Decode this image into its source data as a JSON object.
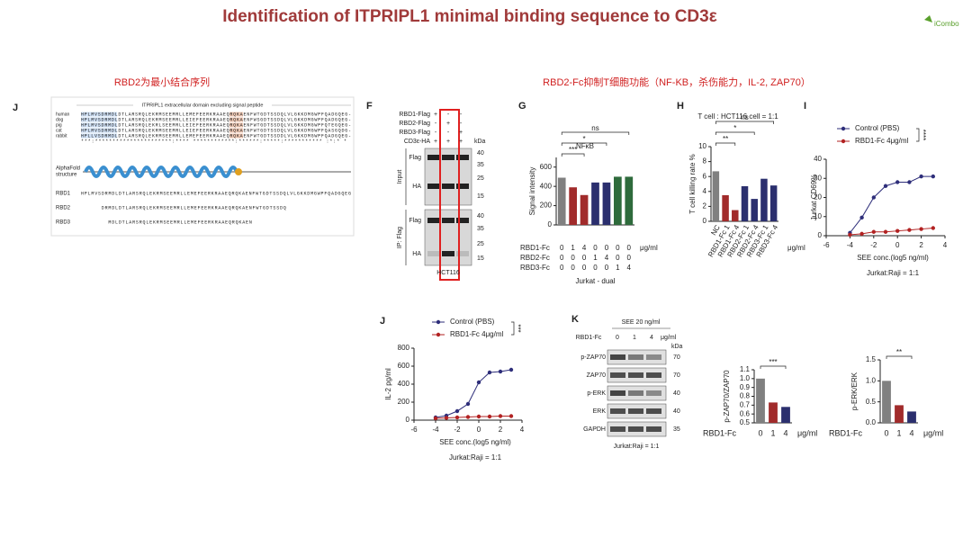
{
  "header": {
    "title": "Identification of ITPRIPL1 minimal binding sequence to CD3ε",
    "logo": "iCombo"
  },
  "section_titles": [
    "RBD2为最小结合序列",
    "RBD2-Fc抑制T细胞功能（NF-KB，杀伤能力，IL-2, ZAP70）"
  ],
  "panel_letters": [
    "J",
    "F",
    "G",
    "H",
    "I",
    "J",
    "K"
  ],
  "alignment": {
    "header": "ITPRIPL1 extracellular domain excluding signal peptide",
    "species": [
      "human",
      "dog",
      "pig",
      "cat",
      "rabbit"
    ],
    "sequences": [
      "HPLMVSDRMDLDTLARSRQLEKRMSEEMRLLEMEFEERKRAAEQRQKAENFWTGDTSSDQLVLGKKDMGWPFQADGQEG-",
      "HPLMVSDRMDLDTLARSRQLEKRMSEEMRLLEIEFEERKRAAEQRQKAENFWSGDTSSDQLVLGKKDMGWPFQADGQEG-",
      "HPLMVSDRMDLDTLARSRQLEKRLSEEMRLLEIEFEERKRAAEQRQKAENFWTGDTSSDQLVLGKKDMGWPFQTEGQEG-",
      "HPLMVSDRMDLDTLARSRQLEKRMSEEMRLLEIEFEERKRAAEQRQKAENFWTGDTSSDQLVLGKKDMGWPFQASGQDG-",
      "HPLLVSDRMDLDTLARSRQLEKRMSEEMRLLEMEFEERKRAAEQRQKAENFWTGDTSSDDLVLGKKDMGWPFQADGQEG-"
    ],
    "consensus": "***:**********************:**** ************:******:*****:*********** :*:* *",
    "structure_label": [
      "AlphaFold",
      "structure"
    ],
    "constructs": [
      {
        "name": "RBD1",
        "sequence": "HPLMVSDRMDLDTLARSRQLEKRMSEEMRLLEMEFEERKRAAEQRQKAENFWTGDTSSDQLVLGKKDMGWPFQADGQEG"
      },
      {
        "name": "RBD2",
        "sequence": "DRMDLDTLARSRQLEKRMSEEMRLLEMEFEERKRAAEQRQKAENFWTGDTSSDQ"
      },
      {
        "name": "RBD3",
        "sequence": "MDLDTLARSRQLEKRMSEEMRLLEMEFEERKRAAEQRQKAEN"
      }
    ]
  },
  "blot_f": {
    "rows": [
      {
        "label": "RBD1-Flag",
        "signs": [
          "+",
          "-",
          "-"
        ]
      },
      {
        "label": "RBD2-Flag",
        "signs": [
          "-",
          "+",
          "-"
        ]
      },
      {
        "label": "RBD3-Flag",
        "signs": [
          "-",
          "-",
          "+"
        ]
      },
      {
        "label": "CD3ε-HA",
        "signs": [
          "+",
          "+",
          "+"
        ]
      }
    ],
    "kda": "kDa",
    "groups": [
      "Input",
      "IP: Flag"
    ],
    "bands": [
      "Flag",
      "HA",
      "Flag",
      "HA"
    ],
    "markers": [
      40,
      35,
      25,
      15,
      40,
      35,
      25,
      15
    ],
    "cell": "HCT116"
  },
  "blot_k": {
    "condition": "SEE 20 ng/ml",
    "treatment": "RBD1-Fc",
    "doses": [
      0,
      1,
      4
    ],
    "unit": "μg/ml",
    "kda": "kDa",
    "bands": [
      {
        "label": "p-ZAP70",
        "marker": 70
      },
      {
        "label": "ZAP70",
        "marker": 70
      },
      {
        "label": "p-ERK",
        "marker": 40
      },
      {
        "label": "ERK",
        "marker": 40
      },
      {
        "label": "GAPDH",
        "marker": 35
      }
    ],
    "caption": "Jurkat:Raji = 1:1"
  },
  "chart_data": [
    {
      "type": "bar",
      "title": "NFκB",
      "ylabel": "Signal intensity",
      "values": [
        490,
        390,
        310,
        440,
        440,
        500,
        500
      ],
      "colors": [
        "#808080",
        "#a12b2b",
        "#a12b2b",
        "#2b2f6e",
        "#2b2f6e",
        "#2e6b3c",
        "#2e6b3c"
      ],
      "ylim": [
        0,
        700
      ],
      "yticks": [
        0,
        200,
        400,
        600
      ],
      "category_rows": [
        {
          "label": "RBD1-Fc",
          "values": [
            0,
            1,
            4,
            0,
            0,
            0,
            0
          ]
        },
        {
          "label": "RBD2-Fc",
          "values": [
            0,
            0,
            0,
            1,
            4,
            0,
            0
          ]
        },
        {
          "label": "RBD3-Fc",
          "values": [
            0,
            0,
            0,
            0,
            0,
            1,
            4
          ]
        }
      ],
      "unit": "μg/ml",
      "xlabel": "Jurkat - dual",
      "significance": [
        "***",
        "*",
        "ns"
      ]
    },
    {
      "type": "bar",
      "title": "T cell : HCT116 cell = 1:1",
      "ylabel": "T cell killing rate %",
      "values": [
        6.7,
        3.5,
        1.5,
        4.7,
        3,
        5.7,
        4.8
      ],
      "colors": [
        "#808080",
        "#a12b2b",
        "#a12b2b",
        "#2b2f6e",
        "#2b2f6e",
        "#2b2f6e",
        "#2b2f6e"
      ],
      "categories": [
        "NC",
        "RBD1-Fc 1",
        "RBD1-Fc 4",
        "RBD2-Fc 1",
        "RBD2-Fc 4",
        "RBD3-Fc 1",
        "RBD3-Fc 4"
      ],
      "ylim": [
        0,
        10
      ],
      "yticks": [
        0,
        2,
        4,
        6,
        8,
        10
      ],
      "unit": "μg/ml",
      "significance": [
        "**",
        "*",
        "ns"
      ]
    },
    {
      "type": "line",
      "ylabel": "Jurkat CD69%",
      "xlabel": "SEE conc.(log5 ng/ml)",
      "caption": "Jurkat:Raji = 1:1",
      "x": [
        -4,
        -3,
        -2,
        -1,
        0,
        1,
        2,
        3
      ],
      "xlim": [
        -6,
        4
      ],
      "xticks": [
        -6,
        -4,
        -2,
        0,
        2,
        4
      ],
      "ylim": [
        0,
        40
      ],
      "yticks": [
        0,
        10,
        20,
        30,
        40
      ],
      "series": [
        {
          "name": "Control (PBS)",
          "color": "#2e2e7a",
          "values": [
            1.5,
            9.5,
            20,
            26,
            28,
            28,
            31,
            31
          ]
        },
        {
          "name": "RBD1-Fc 4μg/ml",
          "color": "#b22222",
          "values": [
            0.5,
            1,
            2,
            2,
            2.5,
            3,
            3.5,
            4
          ]
        }
      ],
      "significance": [
        "****"
      ]
    },
    {
      "type": "line",
      "ylabel": "IL-2 pg/ml",
      "xlabel": "SEE conc.(log5 ng/ml)",
      "caption": "Jurkat:Raji = 1:1",
      "x": [
        -4,
        -3,
        -2,
        -1,
        0,
        1,
        2,
        3
      ],
      "xlim": [
        -6,
        4
      ],
      "xticks": [
        -6,
        -4,
        -2,
        0,
        2,
        4
      ],
      "ylim": [
        0,
        800
      ],
      "yticks": [
        0,
        200,
        400,
        600,
        800
      ],
      "series": [
        {
          "name": "Control (PBS)",
          "color": "#2e2e7a",
          "values": [
            30,
            50,
            100,
            180,
            420,
            530,
            540,
            560
          ]
        },
        {
          "name": "RBD1-Fc 4μg/ml",
          "color": "#b22222",
          "values": [
            20,
            25,
            30,
            35,
            40,
            40,
            45,
            45
          ]
        }
      ],
      "significance": [
        "***"
      ]
    },
    {
      "type": "bar",
      "ylabel": "p-ZAP70/ZAP70",
      "xlabel": "RBD1-Fc",
      "categories": [
        "0",
        "1",
        "4"
      ],
      "values": [
        1.0,
        0.73,
        0.68
      ],
      "colors": [
        "#808080",
        "#a12b2b",
        "#2b2f6e"
      ],
      "ylim": [
        0.5,
        1.1
      ],
      "yticks": [
        0.5,
        0.6,
        0.7,
        0.8,
        0.9,
        {
          "value": 1,
          "label": "1.0"
        },
        1.1
      ],
      "unit": "μg/ml",
      "significance": [
        "***"
      ]
    },
    {
      "type": "bar",
      "ylabel": "p-ERK/ERK",
      "xlabel": "RBD1-Fc",
      "categories": [
        "0",
        "1",
        "4"
      ],
      "values": [
        1.0,
        0.42,
        0.27
      ],
      "colors": [
        "#808080",
        "#a12b2b",
        "#2b2f6e"
      ],
      "ylim": [
        0,
        1.5
      ],
      "yticks": [
        {
          "value": 0,
          "label": "0.0"
        },
        0.5,
        {
          "value": 1,
          "label": "1.0"
        },
        1.5
      ],
      "unit": "μg/ml",
      "significance": [
        "**"
      ]
    }
  ]
}
